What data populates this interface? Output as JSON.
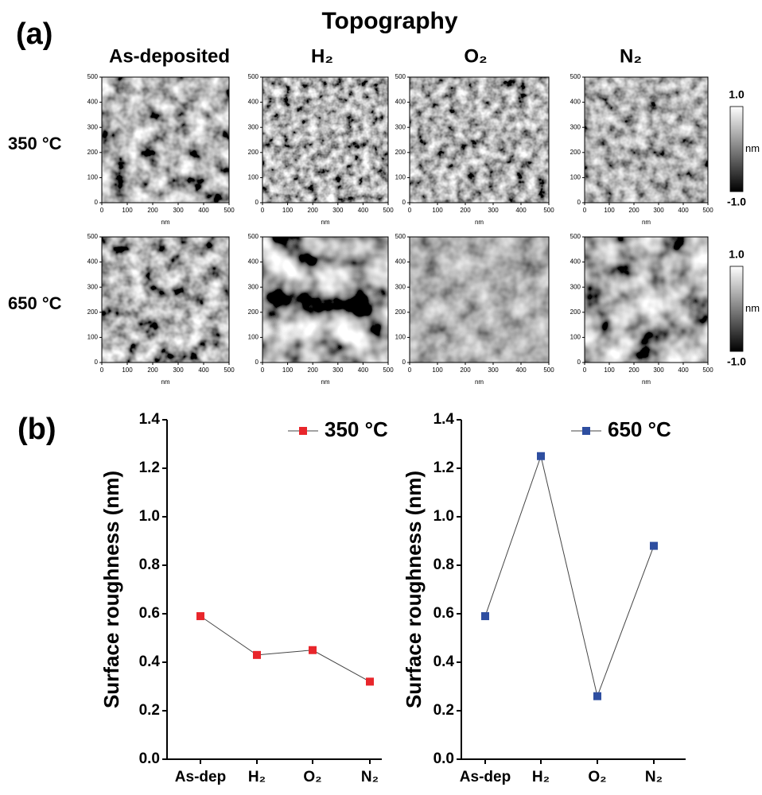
{
  "figure": {
    "panel_a": "(a)",
    "title": "Topography",
    "columns": [
      "As-deposited",
      "H₂",
      "O₂",
      "N₂"
    ],
    "rows": [
      "350 °C",
      "650 °C"
    ],
    "afm_lim": [
      0,
      500
    ],
    "afm_ticks": [
      0,
      100,
      200,
      300,
      400,
      500
    ],
    "afm_unit": "nm",
    "colorbar": {
      "lim": [
        -1,
        1
      ],
      "ticks": [
        {
          "value": 1,
          "label": "1.0"
        },
        {
          "value": -1,
          "label": "-1.0"
        }
      ],
      "unit": "nm"
    },
    "panel_b": "(b)"
  },
  "chart_data": [
    {
      "type": "line",
      "categories": [
        "As-dep",
        "H₂",
        "O₂",
        "N₂"
      ],
      "ylabel": "Surface roughness (nm)",
      "ylim": [
        0,
        1.4
      ],
      "yticks": [
        {
          "value": 0,
          "label": "0.0"
        },
        {
          "value": 0.2,
          "label": "0.2"
        },
        {
          "value": 0.4,
          "label": "0.4"
        },
        {
          "value": 0.6,
          "label": "0.6"
        },
        {
          "value": 0.8,
          "label": "0.8"
        },
        {
          "value": 1,
          "label": "1.0"
        },
        {
          "value": 1.2,
          "label": "1.2"
        },
        {
          "value": 1.4,
          "label": "1.4"
        }
      ],
      "series": [
        {
          "name": "350 °C",
          "color": "#e8262b",
          "values": [
            0.59,
            0.43,
            0.45,
            0.32
          ]
        }
      ]
    },
    {
      "type": "line",
      "categories": [
        "As-dep",
        "H₂",
        "O₂",
        "N₂"
      ],
      "ylabel": "Surface roughness (nm)",
      "ylim": [
        0,
        1.4
      ],
      "yticks": [
        {
          "value": 0,
          "label": "0.0"
        },
        {
          "value": 0.2,
          "label": "0.2"
        },
        {
          "value": 0.4,
          "label": "0.4"
        },
        {
          "value": 0.6,
          "label": "0.6"
        },
        {
          "value": 0.8,
          "label": "0.8"
        },
        {
          "value": 1,
          "label": "1.0"
        },
        {
          "value": 1.2,
          "label": "1.2"
        },
        {
          "value": 1.4,
          "label": "1.4"
        }
      ],
      "series": [
        {
          "name": "650 °C",
          "color": "#2e4ea0",
          "values": [
            0.59,
            1.25,
            0.26,
            0.88
          ]
        }
      ]
    }
  ]
}
